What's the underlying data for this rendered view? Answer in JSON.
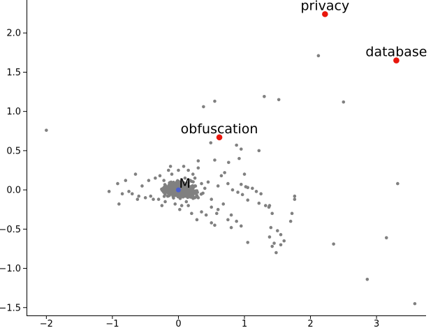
{
  "chart_data": {
    "type": "scatter",
    "title": "",
    "xlabel": "",
    "ylabel": "",
    "xlim": [
      -2.3,
      3.75
    ],
    "ylim": [
      -1.6,
      2.42
    ],
    "xticks": [
      -2,
      -1,
      0,
      1,
      2,
      3
    ],
    "xtick_labels": [
      "−2",
      "−1",
      "0",
      "1",
      "2",
      "3"
    ],
    "yticks": [
      -1.5,
      -1.0,
      -0.5,
      0.0,
      0.5,
      1.0,
      1.5,
      2.0
    ],
    "ytick_labels": [
      "−1.5",
      "−1.0",
      "−0.5",
      "0.0",
      "0.5",
      "1.0",
      "1.5",
      "2.0"
    ],
    "grid": false,
    "colors": {
      "background_points": "#808080",
      "highlight_points": "#e8160c",
      "center_point": "#4a5fd0"
    },
    "background_points": [
      [
        -2.0,
        0.76
      ],
      [
        2.12,
        1.71
      ],
      [
        2.5,
        1.12
      ],
      [
        1.3,
        1.19
      ],
      [
        1.52,
        1.15
      ],
      [
        0.55,
        1.13
      ],
      [
        0.38,
        1.06
      ],
      [
        3.32,
        0.08
      ],
      [
        3.15,
        -0.61
      ],
      [
        2.35,
        -0.69
      ],
      [
        2.86,
        -1.14
      ],
      [
        3.58,
        -1.45
      ],
      [
        0.49,
        0.6
      ],
      [
        0.88,
        0.57
      ],
      [
        0.95,
        0.52
      ],
      [
        1.22,
        0.5
      ],
      [
        0.76,
        0.35
      ],
      [
        0.92,
        0.4
      ],
      [
        0.55,
        0.38
      ],
      [
        0.3,
        0.37
      ],
      [
        0.7,
        0.22
      ],
      [
        1.0,
        0.2
      ],
      [
        0.65,
        0.18
      ],
      [
        0.75,
        0.08
      ],
      [
        0.95,
        0.07
      ],
      [
        1.02,
        0.04
      ],
      [
        1.05,
        0.03
      ],
      [
        1.12,
        0.02
      ],
      [
        1.18,
        -0.02
      ],
      [
        1.25,
        -0.05
      ],
      [
        0.82,
        0.0
      ],
      [
        0.9,
        -0.03
      ],
      [
        0.97,
        -0.06
      ],
      [
        0.6,
        0.05
      ],
      [
        0.45,
        0.1
      ],
      [
        1.05,
        -0.13
      ],
      [
        1.22,
        -0.17
      ],
      [
        1.38,
        -0.2
      ],
      [
        1.76,
        -0.08
      ],
      [
        1.76,
        -0.12
      ],
      [
        1.32,
        -0.2
      ],
      [
        1.37,
        -0.22
      ],
      [
        1.42,
        -0.3
      ],
      [
        0.5,
        -0.12
      ],
      [
        0.68,
        -0.18
      ],
      [
        0.5,
        -0.22
      ],
      [
        0.6,
        -0.25
      ],
      [
        0.35,
        -0.28
      ],
      [
        0.42,
        -0.32
      ],
      [
        0.58,
        -0.3
      ],
      [
        0.8,
        -0.32
      ],
      [
        0.75,
        -0.38
      ],
      [
        0.88,
        -0.4
      ],
      [
        0.28,
        -0.38
      ],
      [
        0.5,
        -0.42
      ],
      [
        0.55,
        -0.45
      ],
      [
        0.8,
        -0.48
      ],
      [
        0.95,
        -0.46
      ],
      [
        1.05,
        -0.67
      ],
      [
        1.4,
        -0.48
      ],
      [
        1.5,
        -0.52
      ],
      [
        1.55,
        -0.57
      ],
      [
        1.38,
        -0.6
      ],
      [
        1.45,
        -0.68
      ],
      [
        1.42,
        -0.72
      ],
      [
        1.55,
        -0.7
      ],
      [
        1.48,
        -0.8
      ],
      [
        1.6,
        -0.65
      ],
      [
        1.7,
        -0.4
      ],
      [
        1.72,
        -0.3
      ],
      [
        0.2,
        -0.3
      ],
      [
        0.25,
        0.15
      ],
      [
        0.15,
        0.25
      ],
      [
        -1.05,
        -0.02
      ],
      [
        -0.92,
        0.08
      ],
      [
        -0.9,
        -0.18
      ],
      [
        -0.8,
        0.12
      ],
      [
        -0.75,
        -0.02
      ],
      [
        -0.85,
        -0.05
      ],
      [
        -0.7,
        -0.05
      ],
      [
        -0.65,
        0.2
      ],
      [
        -0.6,
        -0.08
      ],
      [
        -0.5,
        -0.1
      ],
      [
        -0.55,
        0.05
      ],
      [
        -0.45,
        0.12
      ],
      [
        -0.62,
        -0.12
      ],
      [
        -0.35,
        0.15
      ],
      [
        -0.3,
        -0.12
      ],
      [
        -0.28,
        0.18
      ],
      [
        -0.2,
        -0.15
      ],
      [
        -0.22,
        0.12
      ],
      [
        -0.15,
        0.25
      ],
      [
        -0.1,
        0.2
      ],
      [
        -0.05,
        -0.18
      ],
      [
        0.0,
        0.25
      ],
      [
        0.05,
        -0.2
      ],
      [
        0.1,
        0.15
      ],
      [
        0.12,
        -0.15
      ],
      [
        0.18,
        0.12
      ],
      [
        0.2,
        -0.08
      ],
      [
        0.25,
        0.05
      ],
      [
        0.3,
        -0.1
      ],
      [
        0.35,
        0.08
      ],
      [
        0.4,
        0.02
      ],
      [
        -0.42,
        -0.08
      ],
      [
        -0.38,
        -0.12
      ],
      [
        -0.25,
        -0.2
      ],
      [
        0.02,
        -0.25
      ],
      [
        0.15,
        -0.2
      ],
      [
        0.22,
        0.2
      ],
      [
        0.08,
        0.3
      ],
      [
        -0.12,
        0.3
      ],
      [
        0.3,
        0.28
      ]
    ],
    "labeled_points": [
      {
        "label": "privacy",
        "x": 2.22,
        "y": 2.24
      },
      {
        "label": "database",
        "x": 3.3,
        "y": 1.65
      },
      {
        "label": "obfuscation",
        "x": 0.62,
        "y": 0.67
      }
    ],
    "center_point": {
      "label": "M",
      "x": 0.0,
      "y": 0.0
    }
  }
}
